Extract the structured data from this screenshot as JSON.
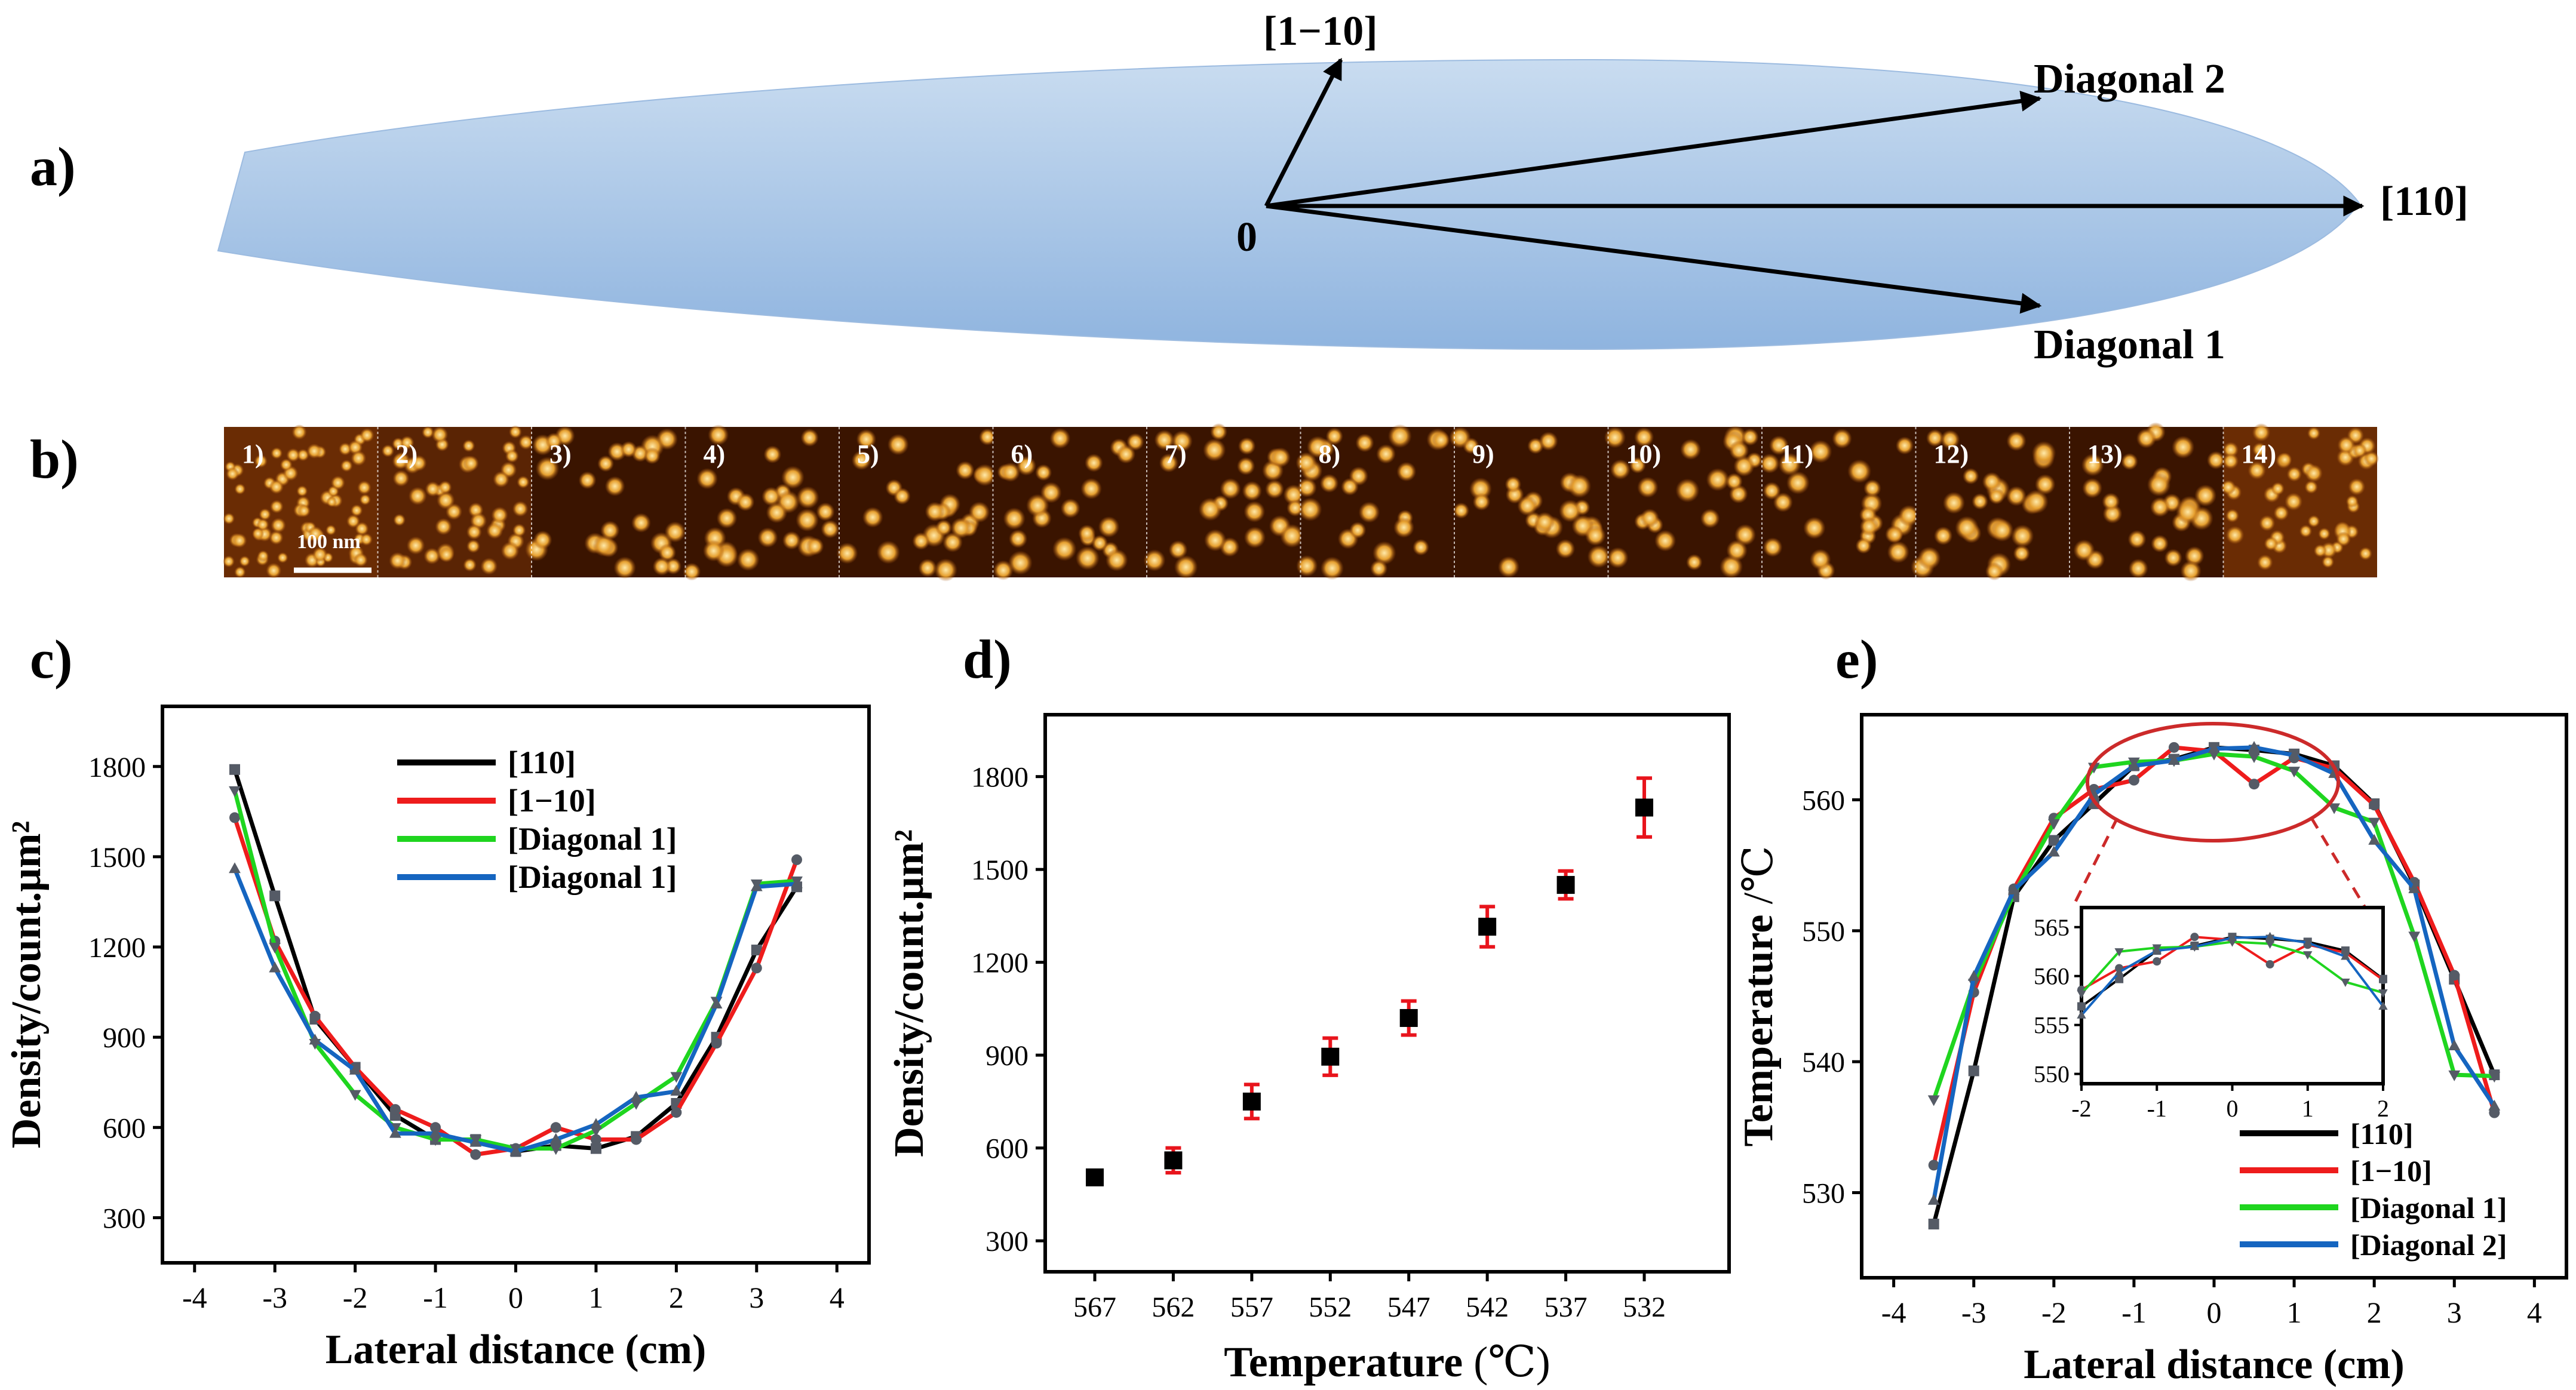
{
  "panel_labels": {
    "a": "a)",
    "b": "b)",
    "c": "c)",
    "d": "d)",
    "e": "e)"
  },
  "panel_a": {
    "origin_label": "0",
    "vectors": [
      "[1−10]",
      "Diagonal 2",
      "[110]",
      "Diagonal 1"
    ],
    "colors": {
      "wafer_light": "#c9dcf0",
      "wafer_dark": "#8fb4df"
    }
  },
  "panel_b": {
    "tiles": [
      "1)",
      "2)",
      "3)",
      "4)",
      "5)",
      "6)",
      "7)",
      "8)",
      "9)",
      "10)",
      "11)",
      "12)",
      "13)",
      "14)"
    ],
    "scale_bar": "100 nm",
    "colors": {
      "afm_dark": "#3a1400",
      "afm_mid": "#9a4a08",
      "afm_bright": "#ffe9a8"
    }
  },
  "chart_data": [
    {
      "id": "c",
      "type": "line",
      "xlabel": "Lateral distance (cm)",
      "ylabel": "Density/count.μm²",
      "xlim": [
        -4.4,
        4.4
      ],
      "ylim": [
        150,
        2000
      ],
      "xticks": [
        -4,
        -3,
        -2,
        -1,
        0,
        1,
        2,
        3,
        4
      ],
      "yticks": [
        300,
        600,
        900,
        1200,
        1500,
        1800
      ],
      "legend": [
        "[110]",
        "[1−10]",
        "[Diagonal 1]",
        "[Diagonal 1]"
      ],
      "x": [
        -3.5,
        -3,
        -2.5,
        -2,
        -1.5,
        -1,
        -0.5,
        0,
        0.5,
        1,
        1.5,
        2,
        2.5,
        3,
        3.5
      ],
      "series": [
        {
          "name": "[110]",
          "color": "#000000",
          "marker": "square",
          "values": [
            1790,
            1370,
            960,
            800,
            640,
            560,
            560,
            520,
            540,
            530,
            570,
            680,
            900,
            1190,
            1400
          ]
        },
        {
          "name": "[1−10]",
          "color": "#ee1c1c",
          "marker": "circle",
          "values": [
            1630,
            1220,
            970,
            800,
            660,
            600,
            510,
            530,
            600,
            560,
            560,
            650,
            880,
            1130,
            1490
          ]
        },
        {
          "name": "[Diagonal 1]",
          "color": "#1fd51f",
          "marker": "triangle-down",
          "values": [
            1720,
            1200,
            880,
            710,
            600,
            560,
            560,
            530,
            530,
            590,
            680,
            770,
            1020,
            1410,
            1420
          ]
        },
        {
          "name": "[Diagonal 1]",
          "color": "#1565c0",
          "marker": "triangle-up",
          "values": [
            1460,
            1130,
            890,
            790,
            580,
            580,
            550,
            520,
            560,
            610,
            700,
            720,
            1010,
            1400,
            1410
          ]
        }
      ]
    },
    {
      "id": "d",
      "type": "scatter",
      "xlabel": "Temperature",
      "xlabel_unit": "(℃)",
      "ylabel": "Density/count.μm²",
      "categories": [
        "567",
        "562",
        "557",
        "552",
        "547",
        "542",
        "537",
        "532"
      ],
      "values": [
        505,
        560,
        750,
        895,
        1020,
        1315,
        1450,
        1700
      ],
      "errors": [
        20,
        40,
        55,
        60,
        55,
        65,
        45,
        95
      ],
      "ylim": [
        200,
        2000
      ],
      "yticks": [
        300,
        600,
        900,
        1200,
        1500,
        1800
      ],
      "colors": {
        "marker": "#000000",
        "error": "#e8141c"
      }
    },
    {
      "id": "e",
      "type": "line",
      "xlabel": "Lateral distance (cm)",
      "ylabel": "Temperature",
      "ylabel_unit": "/℃",
      "xlim": [
        -4.4,
        4.4
      ],
      "ylim": [
        523.5,
        566.5
      ],
      "xticks": [
        -4,
        -3,
        -2,
        -1,
        0,
        1,
        2,
        3,
        4
      ],
      "yticks": [
        530,
        540,
        550,
        560
      ],
      "legend": [
        "[110]",
        "[1−10]",
        "[Diagonal 1]",
        "[Diagonal 2]"
      ],
      "x": [
        -3.5,
        -3,
        -2.5,
        -2,
        -1.5,
        -1,
        -0.5,
        0,
        0.5,
        1,
        1.5,
        2,
        2.5,
        3,
        3.5
      ],
      "series": [
        {
          "name": "[110]",
          "color": "#000000",
          "marker": "square",
          "values": [
            527.6,
            539.3,
            552.6,
            556.9,
            559.7,
            562.6,
            563.1,
            564.0,
            563.8,
            563.5,
            562.6,
            559.7,
            553.5,
            546.3,
            539.0
          ]
        },
        {
          "name": "[1−10]",
          "color": "#ee1c1c",
          "marker": "circle",
          "values": [
            532.1,
            545.3,
            553.2,
            558.6,
            560.8,
            561.5,
            564.0,
            563.7,
            561.2,
            563.2,
            562.4,
            559.6,
            553.7,
            546.6,
            536.1
          ]
        },
        {
          "name": "[Diagonal 1]",
          "color": "#1fd51f",
          "marker": "triangle-down",
          "values": [
            537.1,
            546.0,
            552.8,
            558.2,
            562.5,
            562.9,
            563.0,
            563.5,
            563.3,
            562.2,
            559.4,
            558.3,
            549.6,
            539.0,
            538.9
          ]
        },
        {
          "name": "[Diagonal 2]",
          "color": "#1565c0",
          "marker": "triangle-up",
          "values": [
            529.4,
            546.5,
            553.1,
            556.0,
            560.4,
            562.6,
            563.0,
            563.9,
            564.0,
            563.4,
            562.0,
            556.9,
            553.2,
            541.2,
            536.6
          ]
        }
      ],
      "inset": {
        "xlim": [
          -2,
          2
        ],
        "ylim": [
          549,
          567
        ],
        "xticks": [
          -2,
          -1,
          0,
          1,
          2
        ],
        "yticks": [
          550,
          555,
          560,
          565
        ]
      },
      "highlight_color": "#cc2a2a"
    }
  ]
}
